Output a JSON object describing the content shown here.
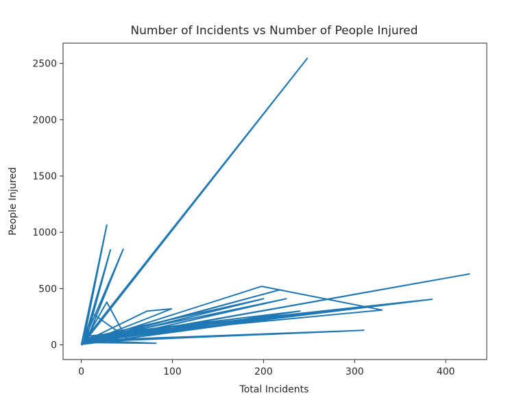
{
  "chart_data": {
    "type": "line",
    "title": "Number of Incidents vs Number of People Injured",
    "xlabel": "Total Incidents",
    "ylabel": "People Injured",
    "xlim": [
      -20,
      445
    ],
    "ylim": [
      -130,
      2680
    ],
    "xticks": [
      0,
      100,
      200,
      300,
      400
    ],
    "yticks": [
      0,
      500,
      1000,
      1500,
      2000,
      2500
    ],
    "grid": false,
    "color": "#1f77b4",
    "series": [
      {
        "x": [
          0,
          28,
          2,
          32,
          4,
          46,
          1,
          248,
          3,
          12,
          40,
          2,
          28,
          50,
          4,
          426,
          8,
          198,
          330,
          6,
          385,
          10,
          240,
          5,
          218,
          7,
          385,
          9,
          310,
          2,
          72,
          99,
          3,
          200,
          4,
          300,
          6,
          225,
          8,
          120,
          10,
          82,
          5,
          60,
          3,
          40,
          2,
          30,
          1,
          20,
          0
        ],
        "y": [
          0,
          1065,
          10,
          845,
          5,
          850,
          0,
          2545,
          40,
          280,
          120,
          10,
          380,
          50,
          20,
          630,
          30,
          520,
          310,
          60,
          405,
          80,
          300,
          20,
          490,
          30,
          405,
          40,
          130,
          25,
          300,
          320,
          15,
          410,
          55,
          330,
          10,
          410,
          45,
          190,
          20,
          15,
          40,
          110,
          20,
          85,
          10,
          50,
          8,
          90,
          0
        ]
      }
    ]
  }
}
